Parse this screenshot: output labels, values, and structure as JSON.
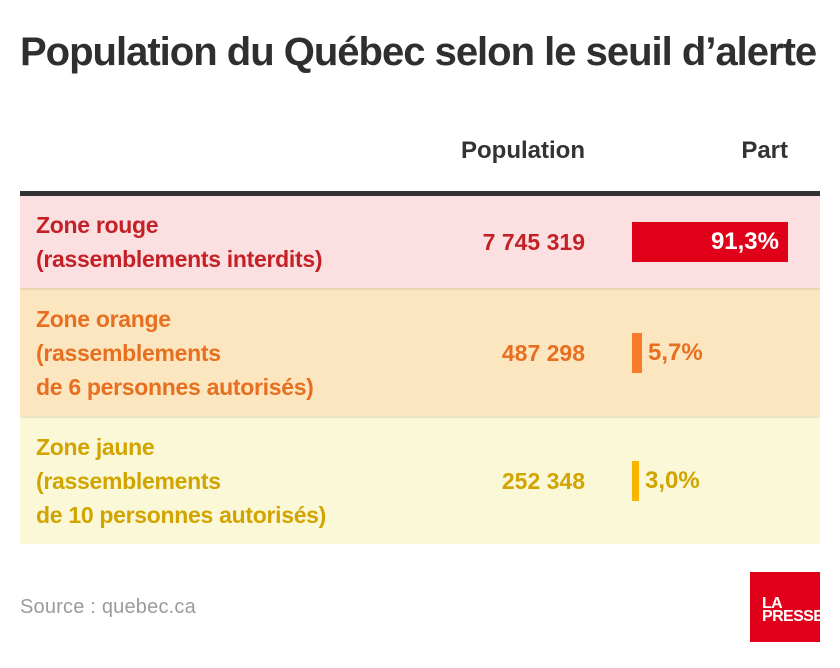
{
  "title": "Population du Québec selon le seuil d’alerte",
  "table": {
    "columns": {
      "population": "Population",
      "part": "Part"
    }
  },
  "source": "Source : quebec.ca",
  "logo": {
    "line1": "LA",
    "line2": "PRESSE",
    "brand_color": "#e10019"
  },
  "colors": {
    "title_text": "#2f2f2f",
    "header_rule": "#323232",
    "red_text": "#c42127",
    "red_bar": "#e10019",
    "red_row_bg": "#fce0e1",
    "orange_text": "#e76f1f",
    "orange_bar": "#f77b28",
    "orange_row_bg": "#fce6bf",
    "yellow_text": "#d2a400",
    "yellow_bar": "#f7b500",
    "yellow_row_bg": "#fbf8d8",
    "source_text": "#9b9b9b"
  },
  "chart_data": {
    "type": "bar",
    "title": "Population du Québec selon le seuil d’alerte",
    "categories": [
      "Zone rouge (rassemblements interdits)",
      "Zone orange (rassemblements de 6 personnes autorisés)",
      "Zone jaune (rassemblements de 10 personnes autorisés)"
    ],
    "series": [
      {
        "name": "Population",
        "values": [
          7745319,
          487298,
          252348
        ]
      },
      {
        "name": "Part (%)",
        "values": [
          91.3,
          5.7,
          3.0
        ]
      }
    ],
    "xlabel": "",
    "ylabel": "",
    "legend_position": "none",
    "grid": false,
    "rows": [
      {
        "label_lines": [
          "Zone rouge",
          "(rassemblements interdits)"
        ],
        "population": "7 745 319",
        "part_label": "91,3%",
        "part_pct": 91.3
      },
      {
        "label_lines": [
          "Zone orange",
          "(rassemblements",
          "de 6 personnes autorisés)"
        ],
        "population": "487 298",
        "part_label": "5,7%",
        "part_pct": 5.7
      },
      {
        "label_lines": [
          "Zone jaune",
          "(rassemblements",
          "de 10 personnes autorisés)"
        ],
        "population": "252 348",
        "part_label": "3,0%",
        "part_pct": 3.0
      }
    ]
  }
}
